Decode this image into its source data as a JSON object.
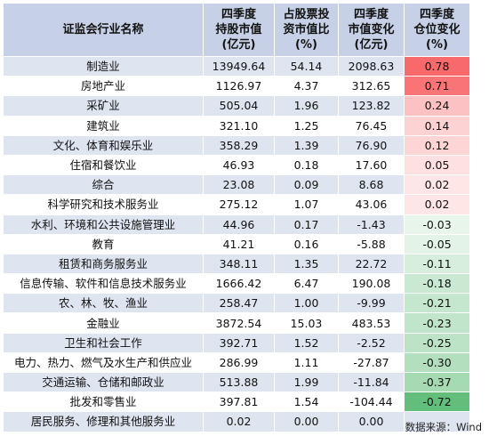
{
  "headers": {
    "name": "证监会行业名称",
    "holdings": "四季度持股市值(亿元)",
    "share": "占股票投资市值比(%)",
    "value_change": "四季度市值变化(亿元)",
    "position_change": "四季度仓位变化(%)"
  },
  "rows": [
    {
      "name": "制造业",
      "holdings": "13949.64",
      "share": "54.14",
      "value_change": "2098.63",
      "position_change": "0.78",
      "pc_value": 0.78
    },
    {
      "name": "房地产业",
      "holdings": "1126.97",
      "share": "4.37",
      "value_change": "312.65",
      "position_change": "0.71",
      "pc_value": 0.71
    },
    {
      "name": "采矿业",
      "holdings": "505.04",
      "share": "1.96",
      "value_change": "123.82",
      "position_change": "0.24",
      "pc_value": 0.24
    },
    {
      "name": "建筑业",
      "holdings": "321.10",
      "share": "1.25",
      "value_change": "76.45",
      "position_change": "0.14",
      "pc_value": 0.14
    },
    {
      "name": "文化、体育和娱乐业",
      "holdings": "358.29",
      "share": "1.39",
      "value_change": "76.90",
      "position_change": "0.12",
      "pc_value": 0.12
    },
    {
      "name": "住宿和餐饮业",
      "holdings": "46.93",
      "share": "0.18",
      "value_change": "17.60",
      "position_change": "0.05",
      "pc_value": 0.05
    },
    {
      "name": "综合",
      "holdings": "23.08",
      "share": "0.09",
      "value_change": "8.68",
      "position_change": "0.02",
      "pc_value": 0.02
    },
    {
      "name": "科学研究和技术服务业",
      "holdings": "275.12",
      "share": "1.07",
      "value_change": "43.06",
      "position_change": "0.02",
      "pc_value": 0.02
    },
    {
      "name": "水利、环境和公共设施管理业",
      "holdings": "44.96",
      "share": "0.17",
      "value_change": "-1.43",
      "position_change": "-0.03",
      "pc_value": -0.03
    },
    {
      "name": "教育",
      "holdings": "41.21",
      "share": "0.16",
      "value_change": "-5.88",
      "position_change": "-0.05",
      "pc_value": -0.05
    },
    {
      "name": "租赁和商务服务业",
      "holdings": "348.11",
      "share": "1.35",
      "value_change": "22.72",
      "position_change": "-0.11",
      "pc_value": -0.11
    },
    {
      "name": "信息传输、软件和信息技术服务业",
      "holdings": "1666.42",
      "share": "6.47",
      "value_change": "190.08",
      "position_change": "-0.18",
      "pc_value": -0.18
    },
    {
      "name": "农、林、牧、渔业",
      "holdings": "258.47",
      "share": "1.00",
      "value_change": "-9.99",
      "position_change": "-0.21",
      "pc_value": -0.21
    },
    {
      "name": "金融业",
      "holdings": "3872.54",
      "share": "15.03",
      "value_change": "483.53",
      "position_change": "-0.23",
      "pc_value": -0.23
    },
    {
      "name": "卫生和社会工作",
      "holdings": "392.71",
      "share": "1.52",
      "value_change": "-2.52",
      "position_change": "-0.25",
      "pc_value": -0.25
    },
    {
      "name": "电力、热力、燃气及水生产和供应业",
      "holdings": "286.99",
      "share": "1.11",
      "value_change": "-27.87",
      "position_change": "-0.30",
      "pc_value": -0.3
    },
    {
      "name": "交通运输、仓储和邮政业",
      "holdings": "513.88",
      "share": "1.99",
      "value_change": "-11.84",
      "position_change": "-0.37",
      "pc_value": -0.37
    },
    {
      "name": "批发和零售业",
      "holdings": "397.81",
      "share": "1.54",
      "value_change": "-104.44",
      "position_change": "-0.72",
      "pc_value": -0.72
    },
    {
      "name": "居民服务、修理和其他服务业",
      "holdings": "0.02",
      "share": "0.00",
      "value_change": "0.00",
      "position_change": "",
      "pc_value": null
    }
  ],
  "colors": {
    "positive": "#f8696b",
    "negative": "#63be7b",
    "neutral": "#ffffff"
  },
  "source": "数据来源：Wind"
}
